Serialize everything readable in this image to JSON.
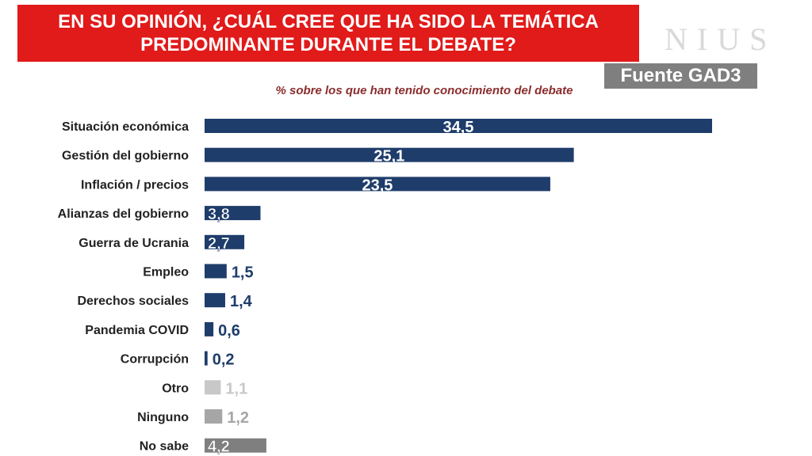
{
  "header": {
    "title_line1": "EN SU OPINIÓN, ¿CUÁL CREE QUE HA SIDO LA TEMÁTICA",
    "title_line2": "PREDOMINANTE DURANTE EL DEBATE?",
    "brand": "NIUS",
    "source": "Fuente GAD3"
  },
  "chart_data": {
    "type": "bar",
    "orientation": "horizontal",
    "title": "EN SU OPINIÓN, ¿CUÁL CREE QUE HA SIDO LA TEMÁTICA PREDOMINANTE DURANTE EL DEBATE?",
    "subtitle": "% sobre los que han tenido conocimiento del debate",
    "categories": [
      "Situación económica",
      "Gestión del gobierno",
      "Inflación / precios",
      "Alianzas del gobierno",
      "Guerra de Ucrania",
      "Empleo",
      "Derechos sociales",
      "Pandemia COVID",
      "Corrupción",
      "Otro",
      "Ninguno",
      "No sabe"
    ],
    "values": [
      34.5,
      25.1,
      23.5,
      3.8,
      2.7,
      1.5,
      1.4,
      0.6,
      0.2,
      1.1,
      1.2,
      4.2
    ],
    "value_labels": [
      "34,5",
      "25,1",
      "23,5",
      "3,8",
      "2,7",
      "1,5",
      "1,4",
      "0,6",
      "0,2",
      "1,1",
      "1,2",
      "4,2"
    ],
    "bar_colors": [
      "#1f3d6b",
      "#1f3d6b",
      "#1f3d6b",
      "#1f3d6b",
      "#1f3d6b",
      "#1f3d6b",
      "#1f3d6b",
      "#1f3d6b",
      "#1f3d6b",
      "#c8c8c8",
      "#a6a6a6",
      "#7f7f7f"
    ],
    "xlim": [
      0,
      35
    ],
    "grid": false,
    "legend": "none"
  }
}
